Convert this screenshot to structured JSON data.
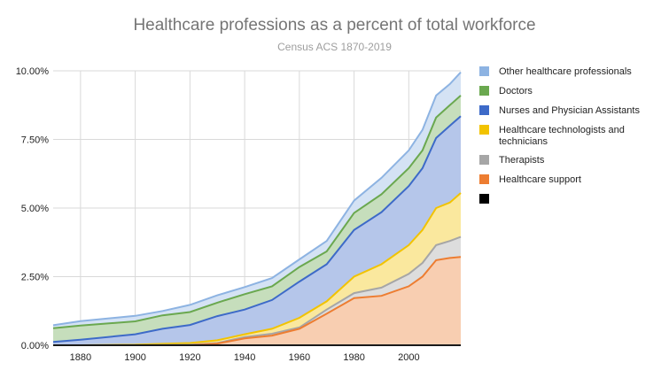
{
  "chart_data": {
    "type": "area",
    "title": "Healthcare professions as a percent of total workforce",
    "subtitle": "Census ACS 1870-2019",
    "xlabel": "",
    "ylabel": "",
    "x": [
      1870,
      1880,
      1900,
      1910,
      1920,
      1930,
      1940,
      1950,
      1960,
      1970,
      1980,
      1990,
      2000,
      2005,
      2010,
      2015,
      2019
    ],
    "xlim": [
      1870,
      2019
    ],
    "ylim": [
      0,
      10
    ],
    "x_ticks": [
      "1880",
      "1900",
      "1920",
      "1940",
      "1960",
      "1980",
      "2000"
    ],
    "x_tick_values": [
      1880,
      1900,
      1920,
      1940,
      1960,
      1980,
      2000
    ],
    "y_ticks": [
      "0.00%",
      "2.50%",
      "5.00%",
      "7.50%",
      "10.00%"
    ],
    "y_tick_values": [
      0,
      2.5,
      5,
      7.5,
      10
    ],
    "grid": true,
    "legend_position": "right",
    "series_cumulative": true,
    "series": [
      {
        "name": "Other healthcare professionals",
        "color": "#8db3e2",
        "values": [
          0.73,
          0.88,
          1.07,
          1.25,
          1.47,
          1.82,
          2.12,
          2.45,
          3.13,
          3.8,
          5.27,
          6.1,
          7.1,
          7.85,
          9.1,
          9.52,
          9.95
        ]
      },
      {
        "name": "Doctors",
        "color": "#6aa84f",
        "values": [
          0.62,
          0.72,
          0.87,
          1.09,
          1.21,
          1.55,
          1.86,
          2.15,
          2.85,
          3.42,
          4.82,
          5.5,
          6.45,
          7.1,
          8.3,
          8.75,
          9.1
        ]
      },
      {
        "name": "Nurses and Physician Assistants",
        "color": "#3d6ac8",
        "values": [
          0.12,
          0.2,
          0.4,
          0.6,
          0.74,
          1.06,
          1.3,
          1.65,
          2.32,
          2.95,
          4.2,
          4.85,
          5.8,
          6.45,
          7.55,
          8.0,
          8.35
        ]
      },
      {
        "name": "Healthcare technologists and technicians",
        "color": "#f2c300",
        "values": [
          0.0,
          0.0,
          0.02,
          0.05,
          0.08,
          0.18,
          0.4,
          0.6,
          1.0,
          1.6,
          2.5,
          2.95,
          3.65,
          4.2,
          5.0,
          5.2,
          5.55
        ]
      },
      {
        "name": "Therapists",
        "color": "#a6a6a6",
        "values": [
          0.0,
          0.0,
          0.0,
          0.01,
          0.02,
          0.08,
          0.3,
          0.42,
          0.65,
          1.3,
          1.9,
          2.1,
          2.6,
          3.0,
          3.65,
          3.8,
          3.95
        ]
      },
      {
        "name": "Healthcare support",
        "color": "#ed7d31",
        "values": [
          0.0,
          0.0,
          0.0,
          0.0,
          0.0,
          0.06,
          0.25,
          0.35,
          0.6,
          1.15,
          1.72,
          1.8,
          2.15,
          2.5,
          3.1,
          3.18,
          3.22
        ]
      },
      {
        "name": "",
        "color": "#000000",
        "values": [
          0.0,
          0.0,
          0.0,
          0.0,
          0.0,
          0.0,
          0.0,
          0.0,
          0.0,
          0.0,
          0.0,
          0.0,
          0.0,
          0.0,
          0.0,
          0.0,
          0.0
        ]
      }
    ]
  }
}
